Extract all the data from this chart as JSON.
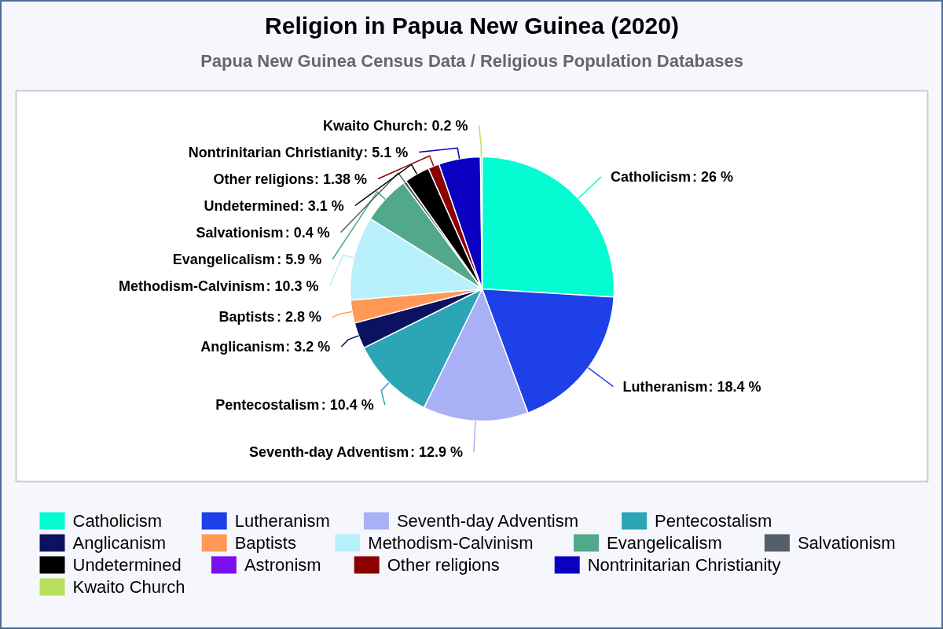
{
  "chart_data": {
    "type": "pie",
    "title": "Religion in Papua New Guinea (2020)",
    "subtitle": "Papua New Guinea Census Data / Religious Population Databases",
    "categories": [
      "Catholicism",
      "Lutheranism",
      "Seventh-day Adventism",
      "Pentecostalism",
      "Anglicanism",
      "Baptists",
      "Methodism-Calvinism",
      "Evangelicalism",
      "Salvationism",
      "Undetermined",
      "Astronism",
      "Other religions",
      "Nontrinitarian Christianity",
      "Kwaito Church"
    ],
    "values": [
      26,
      18.4,
      12.9,
      10.4,
      3.2,
      2.8,
      10.3,
      5.9,
      0.4,
      3.1,
      0,
      1.38,
      5.1,
      0.2
    ],
    "colors": [
      "#05fbd2",
      "#1e40e8",
      "#aab0f5",
      "#2ca5b5",
      "#0c1260",
      "#ff9955",
      "#b8f0fb",
      "#52a88a",
      "#555e6b",
      "#000000",
      "#7a10f0",
      "#8b0000",
      "#0a00c0",
      "#b8e05c"
    ],
    "value_labels": [
      ": 26 %",
      ": 18.4 %",
      ": 12.9 %",
      ": 10.4 %",
      ": 3.2 %",
      ": 2.8 %",
      ": 10.3 %",
      ": 5.9 %",
      ": 0.4 %",
      ": 3.1 %",
      null,
      ": 1.38 %",
      ": 5.1 %",
      ": 0.2 %"
    ],
    "legend": "bottom"
  }
}
